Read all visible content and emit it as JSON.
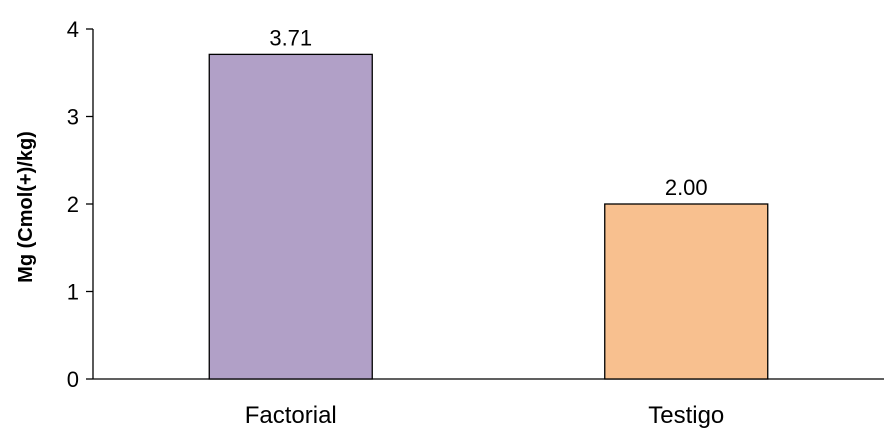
{
  "chart_data": {
    "type": "bar",
    "categories": [
      "Factorial",
      "Testigo"
    ],
    "values": [
      3.71,
      2.0
    ],
    "data_labels": [
      "3.71",
      "2.00"
    ],
    "bar_colors": [
      "#b1a0c7",
      "#f8c08f"
    ],
    "bar_edge_color": "#000000",
    "title": "",
    "xlabel": "",
    "ylabel": "Mg (Cmol(+)/kg)",
    "ylim": [
      0,
      4
    ],
    "yticks": [
      "0",
      "1",
      "2",
      "3",
      "4"
    ],
    "grid": false,
    "legend": "none"
  }
}
